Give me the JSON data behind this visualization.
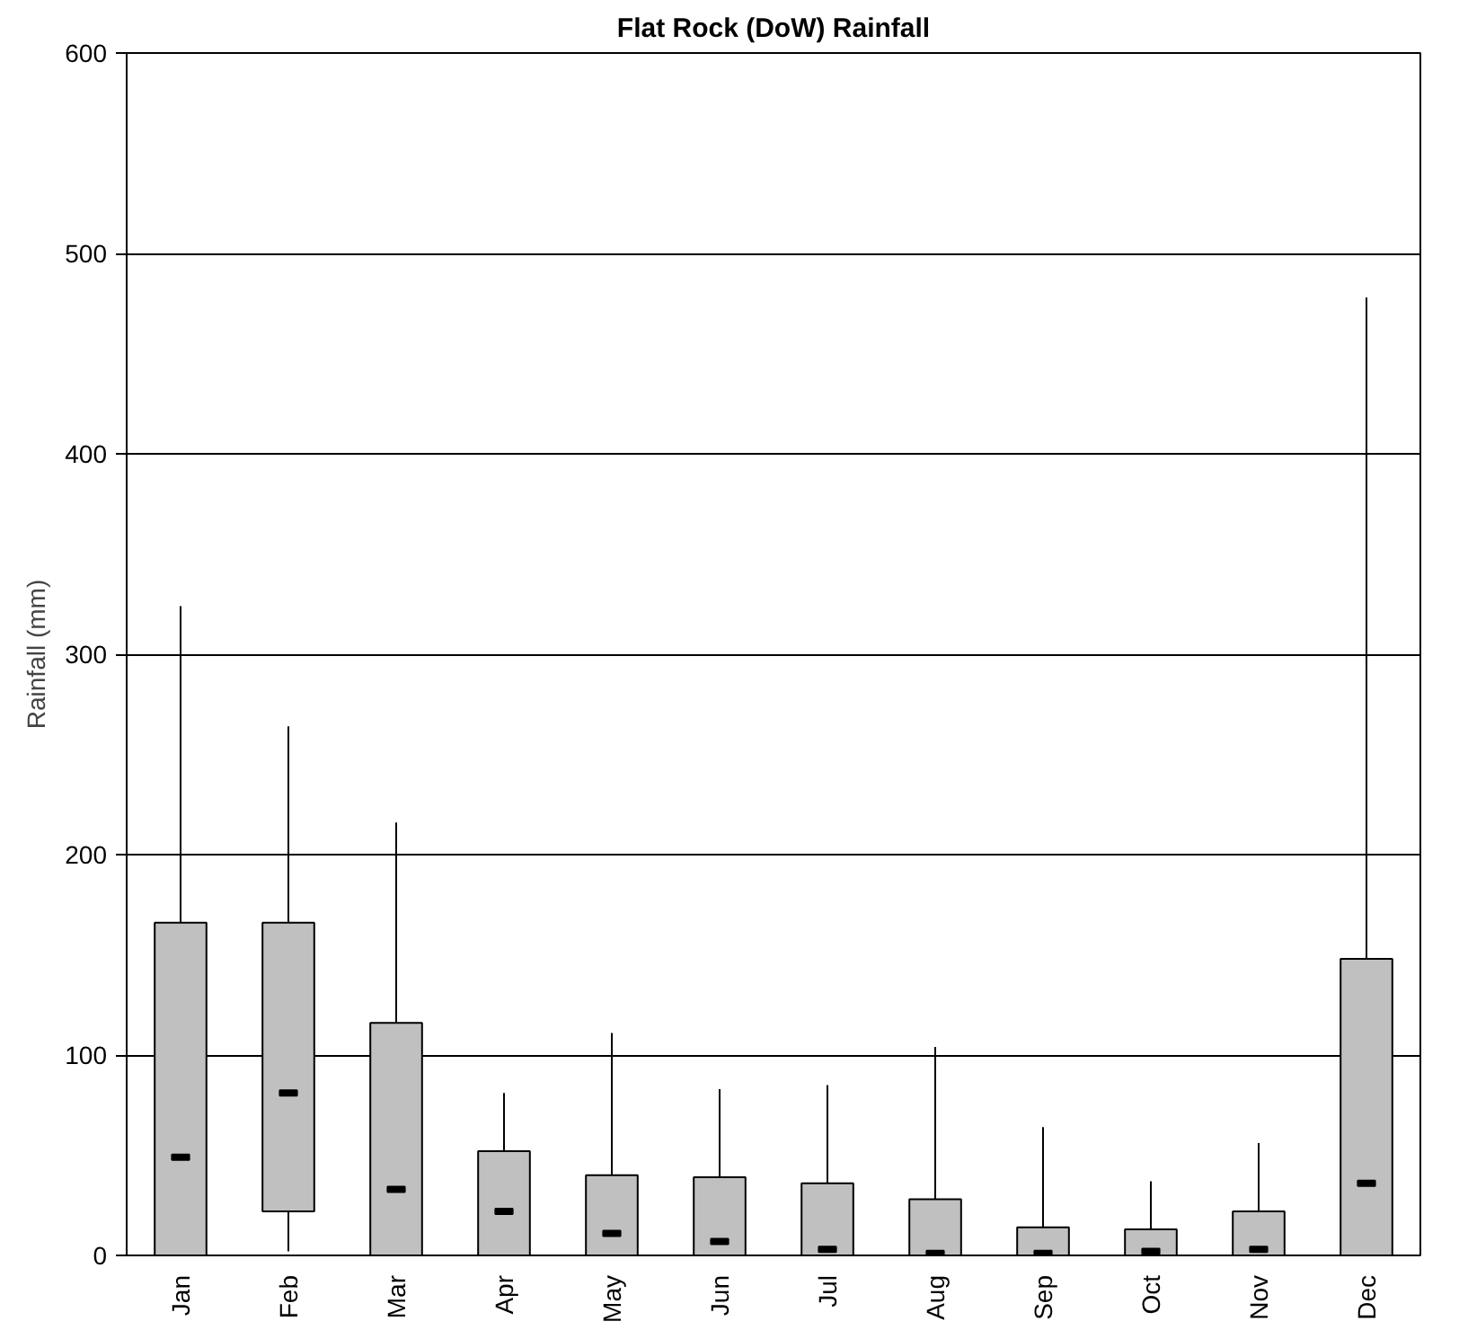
{
  "chart_data": {
    "type": "box",
    "title": "Flat Rock (DoW) Rainfall",
    "ylabel": "Rainfall (mm)",
    "categories": [
      "Jan",
      "Feb",
      "Mar",
      "Apr",
      "May",
      "Jun",
      "Jul",
      "Aug",
      "Sep",
      "Oct",
      "Nov",
      "Dec"
    ],
    "color": "#c0c0c0",
    "boxes": [
      {
        "low": 0,
        "q1": 0,
        "median": 49,
        "q3": 166,
        "high": 324
      },
      {
        "low": 2,
        "q1": 22,
        "median": 81,
        "q3": 166,
        "high": 264
      },
      {
        "low": 0,
        "q1": 0,
        "median": 33,
        "q3": 116,
        "high": 216
      },
      {
        "low": 0,
        "q1": 0,
        "median": 22,
        "q3": 52,
        "high": 81
      },
      {
        "low": 0,
        "q1": 0,
        "median": 11,
        "q3": 40,
        "high": 111
      },
      {
        "low": 0,
        "q1": 0,
        "median": 7,
        "q3": 39,
        "high": 83
      },
      {
        "low": 0,
        "q1": 0,
        "median": 3,
        "q3": 36,
        "high": 85
      },
      {
        "low": 0,
        "q1": 0,
        "median": 1,
        "q3": 28,
        "high": 104
      },
      {
        "low": 0,
        "q1": 0,
        "median": 1,
        "q3": 14,
        "high": 64
      },
      {
        "low": 0,
        "q1": 0,
        "median": 2,
        "q3": 13,
        "high": 37
      },
      {
        "low": 0,
        "q1": 0,
        "median": 3,
        "q3": 22,
        "high": 56
      },
      {
        "low": 0,
        "q1": 0,
        "median": 36,
        "q3": 148,
        "high": 478
      }
    ],
    "ylim": [
      0,
      600
    ],
    "yticks": [
      0,
      100,
      200,
      300,
      400,
      500,
      600
    ],
    "grid": "y"
  }
}
